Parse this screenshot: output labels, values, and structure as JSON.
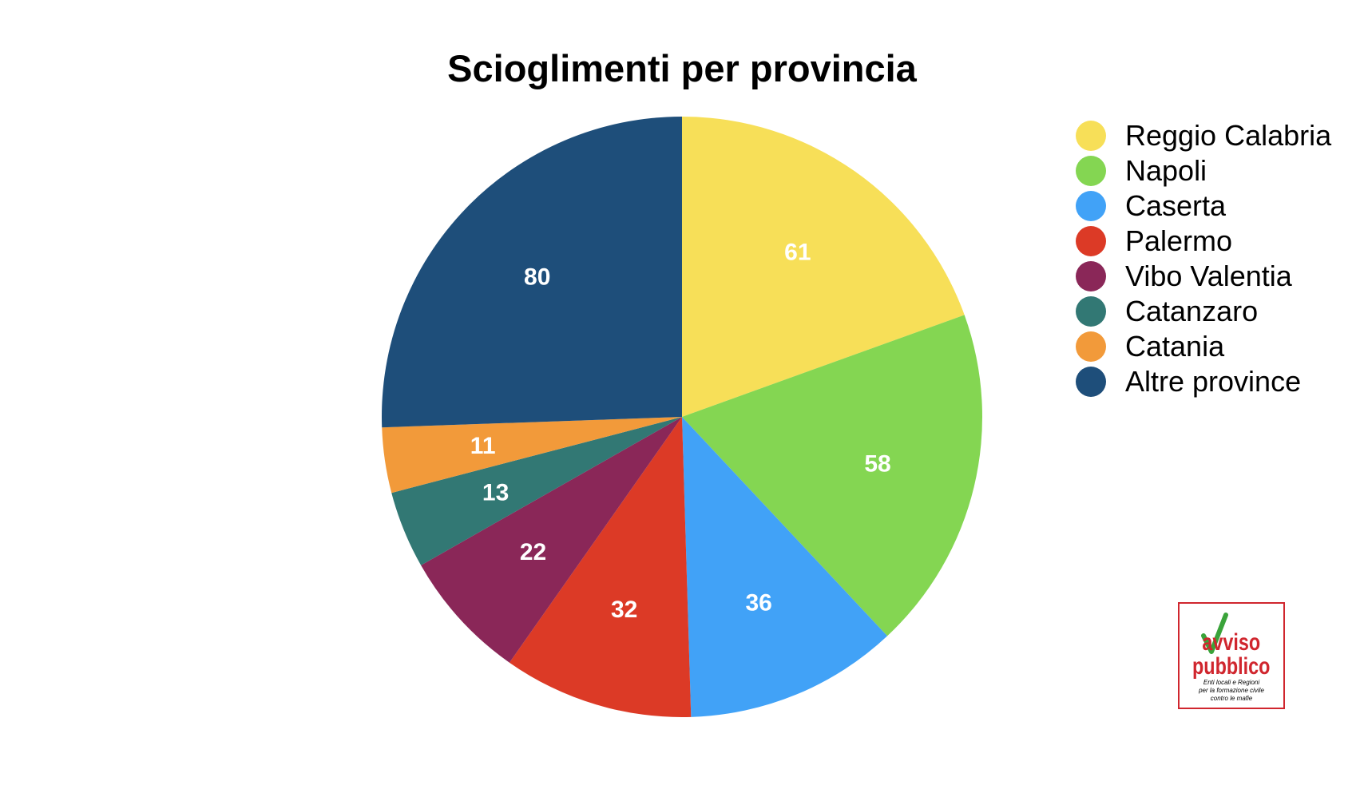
{
  "chart_data": {
    "type": "pie",
    "title": "Scioglimenti per provincia",
    "categories": [
      "Reggio Calabria",
      "Napoli",
      "Caserta",
      "Palermo",
      "Vibo Valentia",
      "Catanzaro",
      "Catania",
      "Altre province"
    ],
    "values": [
      61,
      58,
      36,
      32,
      22,
      13,
      11,
      80
    ],
    "colors": [
      "#f7df58",
      "#84d652",
      "#41a2f7",
      "#dc3a26",
      "#8a2758",
      "#327874",
      "#f29a3a",
      "#1e4e7a"
    ],
    "legend_position": "right",
    "label_color": "#ffffff"
  },
  "logo": {
    "text": "avviso pubblico",
    "tagline": "Enti locali e Regioni per la formazione civile contro le mafie"
  }
}
